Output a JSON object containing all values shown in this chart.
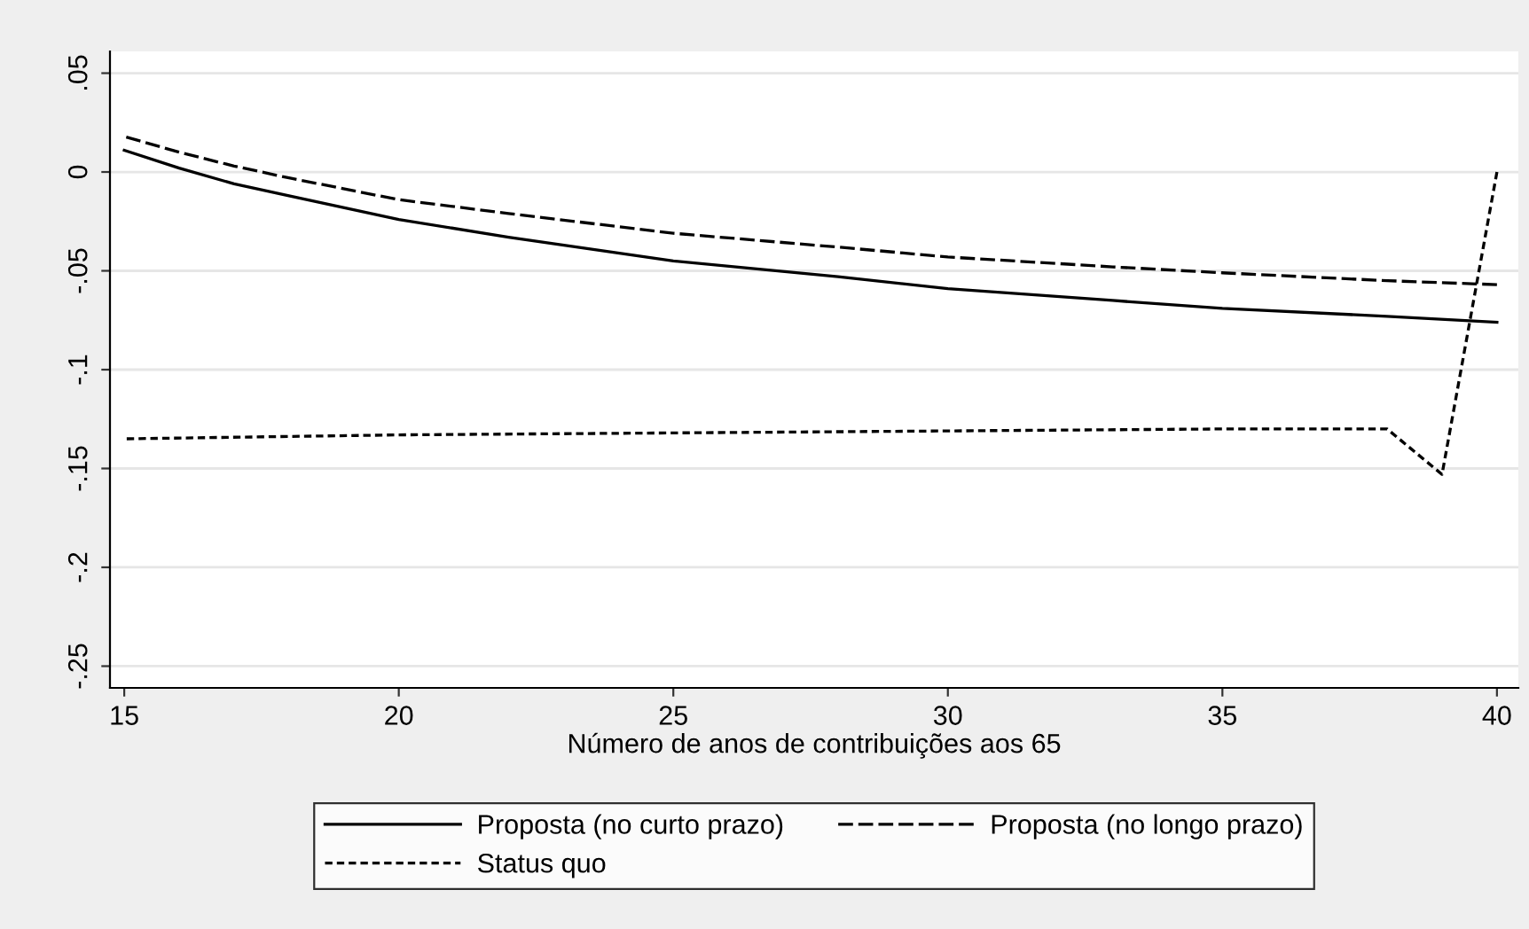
{
  "chart_data": {
    "type": "line",
    "xlabel": "Número de anos de contribuições aos 65",
    "xlim": [
      14.74,
      40.39
    ],
    "ylim": [
      -0.261,
      0.061
    ],
    "xticks": [
      15,
      20,
      25,
      30,
      35,
      40
    ],
    "yticks": [
      {
        "value": 0.05,
        "label": ".05"
      },
      {
        "value": 0,
        "label": "0"
      },
      {
        "value": -0.05,
        "label": "-.05"
      },
      {
        "value": -0.1,
        "label": "-.1"
      },
      {
        "value": -0.15,
        "label": "-.15"
      },
      {
        "value": -0.2,
        "label": "-.2"
      },
      {
        "value": -0.25,
        "label": "-.25"
      }
    ],
    "grid": "y",
    "legend": "bottom",
    "series": [
      {
        "name": "Proposta (no curto prazo)",
        "color": "#000000",
        "line_style": "solid",
        "x": [
          15,
          16,
          17,
          18,
          20,
          22,
          25,
          28,
          30,
          33,
          35,
          38,
          40
        ],
        "values": [
          0.011,
          0.002,
          -0.006,
          -0.012,
          -0.024,
          -0.033,
          -0.045,
          -0.053,
          -0.059,
          -0.065,
          -0.069,
          -0.073,
          -0.076
        ]
      },
      {
        "name": "Proposta (no longo prazo)",
        "color": "#000000",
        "line_style": "dashed",
        "x": [
          15,
          16,
          17,
          18,
          20,
          22,
          25,
          28,
          30,
          33,
          35,
          38,
          40
        ],
        "values": [
          0.018,
          0.01,
          0.003,
          -0.003,
          -0.014,
          -0.021,
          -0.031,
          -0.038,
          -0.043,
          -0.048,
          -0.051,
          -0.055,
          -0.057
        ]
      },
      {
        "name": "Status quo",
        "color": "#000000",
        "line_style": "dotted",
        "x": [
          15,
          20,
          25,
          30,
          35,
          38,
          39,
          40
        ],
        "values": [
          -0.135,
          -0.133,
          -0.132,
          -0.131,
          -0.13,
          -0.13,
          -0.153,
          0.0
        ]
      }
    ]
  }
}
